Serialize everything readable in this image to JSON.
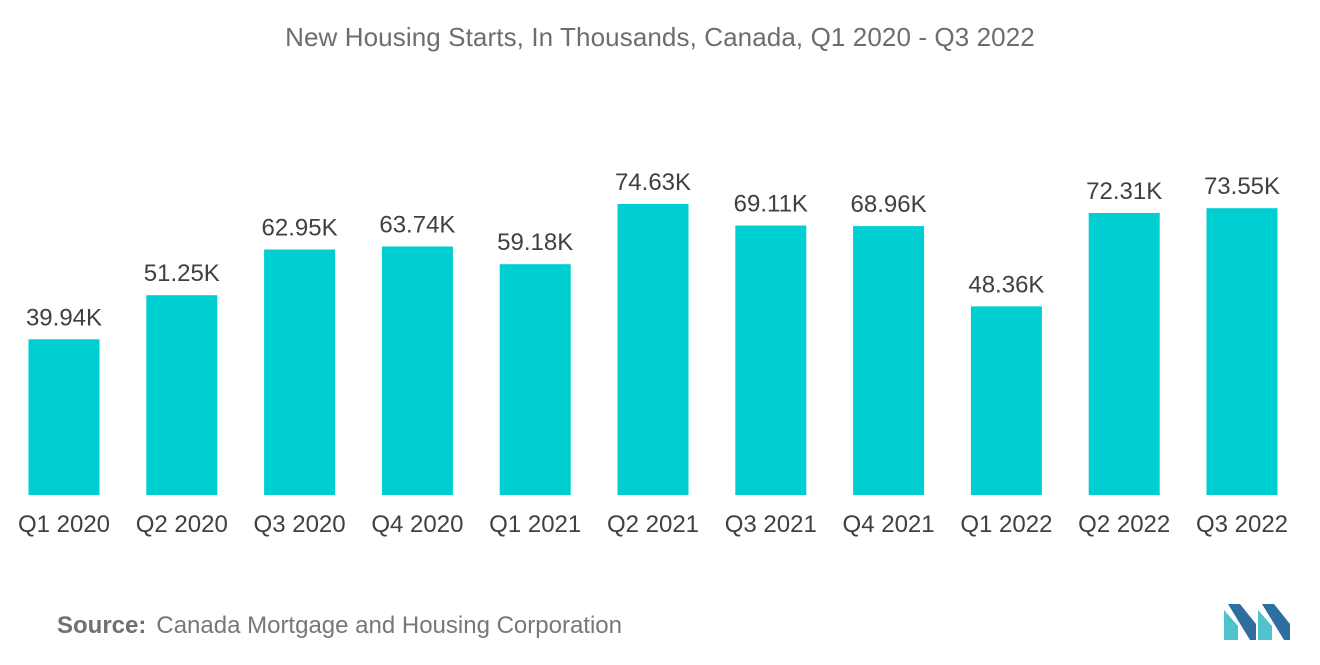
{
  "chart_data": {
    "type": "bar",
    "title": "New Housing Starts, In Thousands, Canada, Q1 2020 - Q3 2022",
    "categories": [
      "Q1 2020",
      "Q2 2020",
      "Q3 2020",
      "Q4 2020",
      "Q1 2021",
      "Q2 2021",
      "Q3 2021",
      "Q4 2021",
      "Q1 2022",
      "Q2 2022",
      "Q3 2022"
    ],
    "values": [
      39.94,
      51.25,
      62.95,
      63.74,
      59.18,
      74.63,
      69.11,
      68.96,
      48.36,
      72.31,
      73.55
    ],
    "labels": [
      "39.94K",
      "51.25K",
      "62.95K",
      "63.74K",
      "59.18K",
      "74.63K",
      "69.11K",
      "68.96K",
      "48.36K",
      "72.31K",
      "73.55K"
    ],
    "xlabel": "",
    "ylabel": "",
    "ylim": [
      0,
      75
    ],
    "grid": false,
    "legend": "none",
    "bar_color": "#00cfd1"
  },
  "source": {
    "label": "Source:",
    "text": "Canada Mortgage and Housing Corporation"
  },
  "colors": {
    "title": "#6d6d6d",
    "label": "#404040",
    "logo_dark": "#2f6f9f",
    "logo_light": "#4fc2cc"
  }
}
